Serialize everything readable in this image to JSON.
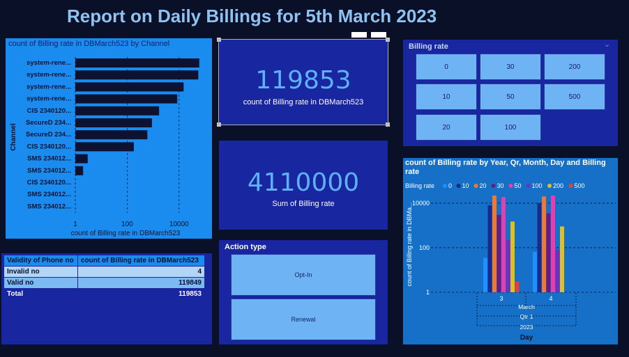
{
  "report_title": "Report on Daily Billings for 5th March 2023",
  "bar_panel": {
    "title": "count of Billing rate in DBMarch523 by Channel",
    "y_axis_label": "Channel",
    "x_axis_label": "count of Billing rate in DBMarch523"
  },
  "cards": [
    {
      "value": "119853",
      "label": "count of Billing rate in DBMarch523"
    },
    {
      "value": "4110000",
      "label": "Sum of Billing rate"
    }
  ],
  "billing_rate_slicer": {
    "title": "Billing rate",
    "options": [
      "0",
      "30",
      "200",
      "10",
      "50",
      "500",
      "20",
      "100"
    ]
  },
  "column_panel": {
    "title_line1": "count of Billing rate by Year, Qr, Month, Day and Billing",
    "title_line2": "rate",
    "legend_title": "Billing rate",
    "y_axis_label": "count of Billing rate in DBMa...",
    "x_axis_label": "Day",
    "hierarchy": {
      "month": "March",
      "quarter": "Qtr 1",
      "year": "2023"
    }
  },
  "validity_table": {
    "headers": [
      "Validity of Phone no",
      "count of Billing rate in DBMarch523"
    ],
    "rows": [
      {
        "label": "Invalid no",
        "value": "4"
      },
      {
        "label": "Valid no",
        "value": "119849"
      }
    ],
    "total": {
      "label": "Total",
      "value": "119853"
    }
  },
  "action_slicer": {
    "title": "Action type",
    "options": [
      "Opt-In",
      "Renewal"
    ]
  },
  "colors": {
    "background": "#0a1028",
    "bar_panel_bg": "#1a8cf0",
    "bar_fill": "#0c1230",
    "card_bg": "#1826a0",
    "card_value": "#5fb0f5",
    "tile_bg": "#6eb4f4"
  },
  "chart_data": [
    {
      "type": "bar",
      "orientation": "horizontal",
      "title": "count of Billing rate in DBMarch523 by Channel",
      "xlabel": "count of Billing rate in DBMarch523",
      "ylabel": "Channel",
      "x_scale": "log",
      "xlim": [
        1,
        100000
      ],
      "x_ticks": [
        "1",
        "100",
        "10000"
      ],
      "categories": [
        "system-rene...",
        "system-rene...",
        "system-rene...",
        "system-rene...",
        "CIS 2340120...",
        "SecureD 234...",
        "SecureD 234...",
        "CIS 2340120...",
        "SMS 234012...",
        "SMS 234012...",
        "CIS 2340120...",
        "SMS 234012...",
        "SMS 234012..."
      ],
      "values": [
        60000,
        55000,
        15000,
        8500,
        1700,
        900,
        600,
        180,
        3,
        2,
        1,
        1,
        1
      ]
    },
    {
      "type": "bar",
      "title": "count of Billing rate by Year, Qr, Month, Day and Billing rate",
      "xlabel": "Day",
      "ylabel": "count of Billing rate in DBMa...",
      "y_scale": "log",
      "ylim": [
        1,
        60000
      ],
      "y_ticks": [
        "1",
        "100",
        "10000"
      ],
      "categories": [
        "3",
        "4"
      ],
      "legend_position": "top",
      "series": [
        {
          "name": "0",
          "color": "#1e90ff",
          "values": [
            35,
            65
          ]
        },
        {
          "name": "10",
          "color": "#1a2a8a",
          "values": [
            8000,
            10000
          ]
        },
        {
          "name": "20",
          "color": "#f07830",
          "values": [
            22000,
            20000
          ]
        },
        {
          "name": "30",
          "color": "#6a1a80",
          "values": [
            3000,
            3500
          ]
        },
        {
          "name": "50",
          "color": "#e040b0",
          "values": [
            19000,
            22000
          ]
        },
        {
          "name": "100",
          "color": "#7030c0",
          "values": [
            220,
            80
          ]
        },
        {
          "name": "200",
          "color": "#e0c020",
          "values": [
            1500,
            900
          ]
        },
        {
          "name": "500",
          "color": "#e04040",
          "values": [
            3,
            1
          ]
        }
      ]
    }
  ]
}
